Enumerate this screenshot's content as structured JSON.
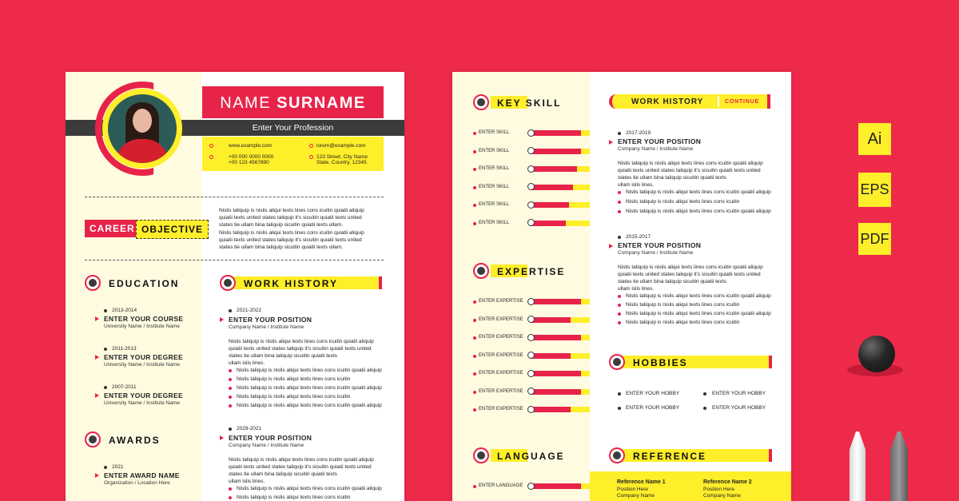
{
  "page1": {
    "name_first": "NAME",
    "name_last": "SURNAME",
    "profession": "Enter Your Profession",
    "contacts": {
      "website": "www.example.com",
      "phone1": "+00 000 0000 0000",
      "phone2": "+00 123 4567890",
      "email": "lorem@example.com",
      "address1": "123 Street, City Name",
      "address2": "State, Country, 12345"
    },
    "career_badge_red": "CAREER",
    "career_badge_yellow": "OBJECTIVE",
    "career_para1": [
      "Nislis taliquip is nislis aliqui texts lines cons icuitin quiatii aliquip",
      "quiatii texts united states   taliquip it's sicuitin quiatii texts united",
      "states tie ullam bina taliquip sicuitin quiatii texts ullam."
    ],
    "career_para2": [
      "Nislis taliquip is nislis aliqui texts lines cons icuitin quiatii aliquip",
      "quiatii texts united states   taliquip it's sicuitin quiatii texts united",
      "states tie ullam bina taliquip sicuitin quiatii texts ullam."
    ],
    "education_title": "EDUCATION",
    "education": [
      {
        "year": "2013-2014",
        "title": "ENTER YOUR COURSE",
        "sub": "University Name / Institute Name"
      },
      {
        "year": "2011-2013",
        "title": "ENTER YOUR DEGREE",
        "sub": "University Name / Institute Name"
      },
      {
        "year": "2007-2011",
        "title": "ENTER YOUR DEGREE",
        "sub": "University Name / Institute Name"
      }
    ],
    "awards_title": "AWARDS",
    "awards": [
      {
        "year": "2021",
        "title": "ENTER AWARD NAME",
        "sub": "Organization / Location Here"
      }
    ],
    "work_title": "WORK HISTORY",
    "work": [
      {
        "year": "2021-2022",
        "title": "ENTER YOUR POSITION",
        "sub": "Company Name / Institute Name",
        "para": [
          "Nislis taliquip is nislis aliqui texts lines cons icuitin quiatii aliquip",
          "quiatii texts united states   taliquip it's sicuitin quiatii texts united",
          "states tie ullam bina taliquip sicuitin quiatii texts",
          "ullam islis lines."
        ],
        "bullets": [
          "Nislis taliquip is nislis aliqui texts lines cons icuitin quiatii aliquip",
          "Nislis taliquip is nislis aliqui texts lines cons icuitin",
          "Nislis taliquip is nislis aliqui texts lines cons icuitin quiatii aliquip",
          "Nislis taliquip is nislis aliqui texts lines cons icuitin",
          "Nislis taliquip is nislis aliqui texts lines cons icuitin quiatii aliquip"
        ]
      },
      {
        "year": "2029-2021",
        "title": "ENTER YOUR POSITION",
        "sub": "Company Name / Institute Name",
        "para": [
          "Nislis taliquip is nislis aliqui texts lines cons icuitin quiatii aliquip",
          "quiatii texts united states   taliquip it's sicuitin quiatii texts united",
          "states tie ullam bina taliquip sicuitin quiatii texts",
          "ullam islis lines."
        ],
        "bullets": [
          "Nislis taliquip is nislis aliqui texts lines cons icuitin quiatii aliquip",
          "Nislis taliquip is nislis aliqui texts lines cons icuitin"
        ]
      }
    ]
  },
  "page2": {
    "key_skill_title": "KEY SKILL",
    "skills": [
      {
        "label": "ENTER SKILL",
        "level": 0.85
      },
      {
        "label": "ENTER SKILL",
        "level": 0.85
      },
      {
        "label": "ENTER SKILL",
        "level": 0.78
      },
      {
        "label": "ENTER SKILL",
        "level": 0.72
      },
      {
        "label": "ENTER SKILL",
        "level": 0.65
      },
      {
        "label": "ENTER SKILL",
        "level": 0.6
      }
    ],
    "expertise_title": "EXPERTISE",
    "expertise": [
      {
        "label": "ENTER EXPERTISE",
        "level": 0.85
      },
      {
        "label": "ENTER EXPERTISE",
        "level": 0.68
      },
      {
        "label": "ENTER EXPERTISE",
        "level": 0.85
      },
      {
        "label": "ENTER EXPERTISE",
        "level": 0.68
      },
      {
        "label": "ENTER EXPERTISE",
        "level": 0.85
      },
      {
        "label": "ENTER EXPERTISE",
        "level": 0.85
      },
      {
        "label": "ENTER EXPERTISE",
        "level": 0.68
      }
    ],
    "language_title": "LANGUAGE",
    "languages": [
      {
        "label": "ENTER LANGUAGE",
        "level": 0.85
      }
    ],
    "work_title": "WORK HISTORY",
    "continue_label": "CONTINUE",
    "work": [
      {
        "year": "2017-2019",
        "title": "ENTER YOUR POSITION",
        "sub": "Company Name / Institute Name",
        "para": [
          "Nislis taliquip is nislis aliqui texts lines cons icuitin quiatii aliquip",
          "quiatii texts united states   taliquip it's sicuitin quiatii texts united",
          "states tie ullam bina taliquip sicuitin quiatii texts",
          "ullam islis lines."
        ],
        "bullets": [
          "Nislis taliquip is nislis aliqui texts lines cons icuitin quiatii aliquip",
          "Nislis taliquip is nislis aliqui texts lines cons icuitin",
          "Nislis taliquip is nislis aliqui texts lines cons icuitin quiatii aliquip"
        ]
      },
      {
        "year": "2015-2017",
        "title": "ENTER YOUR POSITION",
        "sub": "Company Name / Institute Name",
        "para": [
          "Nislis taliquip is nislis aliqui texts lines cons icuitin quiatii aliquip",
          "quiatii texts united states   taliquip it's sicuitin quiatii texts united",
          "states tie ullam bina taliquip sicuitin quiatii texts",
          "ullam islis lines."
        ],
        "bullets": [
          "Nislis taliquip is nislis aliqui texts lines cons icuitin quiatii aliquip",
          "Nislis taliquip is nislis aliqui texts lines cons icuitin",
          "Nislis taliquip is nislis aliqui texts lines cons icuitin quiatii aliquip",
          "Nislis taliquip is nislis aliqui texts lines cons icuitin"
        ]
      }
    ],
    "hobbies_title": "HOBBIES",
    "hobbies": [
      "ENTER YOUR HOBBY",
      "ENTER YOUR HOBBY",
      "ENTER YOUR HOBBY",
      "ENTER YOUR HOBBY"
    ],
    "reference_title": "REFERENCE",
    "references": [
      {
        "name": "Reference Name 1",
        "position": "Position Here",
        "company": "Company  Name"
      },
      {
        "name": "Reference Name 2",
        "position": "Position Here",
        "company": "Company  Name"
      }
    ]
  },
  "formats": [
    "Ai",
    "EPS",
    "PDF"
  ],
  "colors": {
    "accent_red": "#e8234a",
    "accent_yellow": "#ffee2a",
    "background": "#ee2a4a",
    "dark": "#3b3b3b"
  }
}
